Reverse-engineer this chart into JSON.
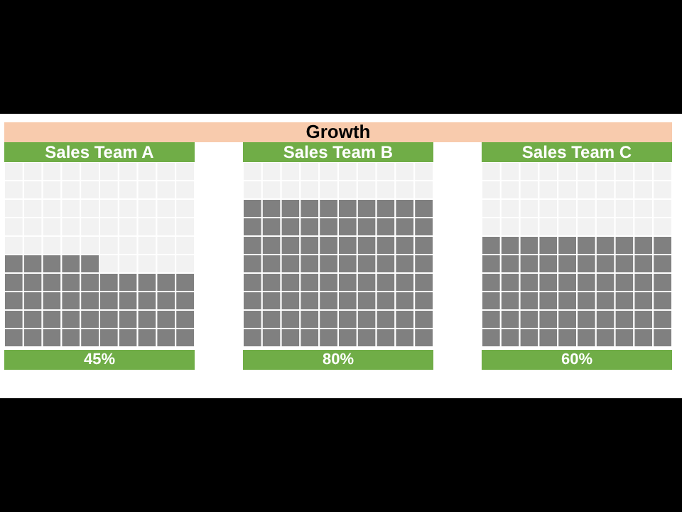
{
  "chart_data": {
    "type": "other",
    "title": "Growth",
    "categories": [
      "Sales Team A",
      "Sales Team B",
      "Sales Team C"
    ],
    "values": [
      45,
      80,
      60
    ],
    "value_labels": [
      "45%",
      "80%",
      "60%"
    ],
    "color": "#808080"
  }
}
